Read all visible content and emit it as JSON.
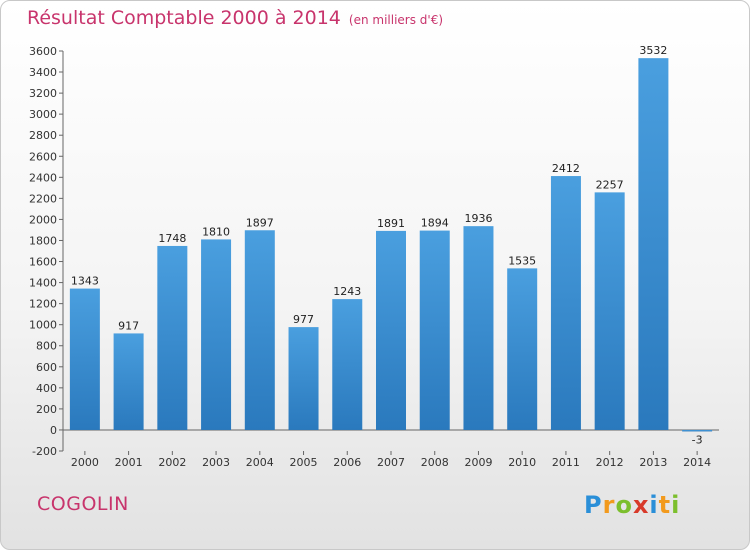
{
  "chart_data": {
    "type": "bar",
    "title": "Résultat Comptable 2000 à 2014",
    "subtitle": "(en milliers d'€)",
    "categories": [
      "2000",
      "2001",
      "2002",
      "2003",
      "2004",
      "2005",
      "2006",
      "2007",
      "2008",
      "2009",
      "2010",
      "2011",
      "2012",
      "2013",
      "2014"
    ],
    "values": [
      1343,
      917,
      1748,
      1810,
      1897,
      977,
      1243,
      1891,
      1894,
      1936,
      1535,
      2412,
      2257,
      3532,
      -3
    ],
    "ylim": [
      -200,
      3600
    ],
    "ytick_step": 200,
    "grid": false,
    "bar_color": "#4a9fdf",
    "bar_color_dark": "#2a79bd"
  },
  "place_name": "COGOLIN",
  "logo": {
    "letters": [
      "P",
      "r",
      "o",
      "x",
      "i",
      "t",
      "i"
    ],
    "colors": [
      "#2a8fd8",
      "#f29a1d",
      "#7cbf2d",
      "#d83a2a",
      "#2a8fd8",
      "#f29a1d",
      "#7cbf2d"
    ]
  },
  "title_color": "#c8346c"
}
